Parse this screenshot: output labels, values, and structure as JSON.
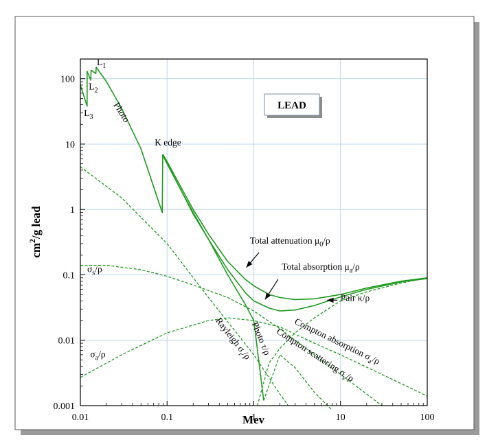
{
  "chart_data": {
    "type": "line",
    "title": "",
    "xlabel": "Mev",
    "ylabel": "cm2/g lead",
    "xscale": "log",
    "yscale": "log",
    "xlim": [
      0.01,
      100
    ],
    "ylim": [
      0.001,
      200
    ],
    "grid": true,
    "x_ticks": [
      "0.01",
      "0.1",
      "1",
      "10",
      "100"
    ],
    "y_ticks": [
      "0.001",
      "0.01",
      "0.1",
      "1",
      "10",
      "100"
    ],
    "box_label": "LEAD",
    "colors": {
      "curve": "#1f9a1f",
      "grid": "#bcd4ec",
      "box_border": "#7a8ca0",
      "frame_shadow": "#9a9a9a"
    },
    "series": [
      {
        "key": "photo",
        "style": "solid",
        "points": [
          [
            0.01,
            80
          ],
          [
            0.01195,
            38
          ],
          [
            0.01196,
            130
          ],
          [
            0.0132,
            95
          ],
          [
            0.0133,
            135
          ],
          [
            0.0151,
            120
          ],
          [
            0.0152,
            150
          ],
          [
            0.02,
            90
          ],
          [
            0.03,
            35
          ],
          [
            0.05,
            8.5
          ],
          [
            0.088,
            0.9
          ],
          [
            0.089,
            6.8
          ],
          [
            0.1,
            5.0
          ],
          [
            0.15,
            1.8
          ],
          [
            0.2,
            0.9
          ],
          [
            0.3,
            0.35
          ],
          [
            0.5,
            0.1
          ],
          [
            0.8,
            0.035
          ],
          [
            1,
            0.02
          ],
          [
            1.3,
            0.0012
          ]
        ]
      },
      {
        "key": "photo_low",
        "style": "dashed",
        "points": [
          [
            1.3,
            0.0012
          ],
          [
            2,
            0.006
          ],
          [
            3,
            0.0038
          ],
          [
            5,
            0.0016
          ],
          [
            8,
            0.00085
          ]
        ]
      },
      {
        "key": "total_attenuation",
        "style": "solid",
        "points": [
          [
            0.089,
            7.0
          ],
          [
            0.1,
            5.4
          ],
          [
            0.15,
            2.0
          ],
          [
            0.2,
            1.0
          ],
          [
            0.3,
            0.42
          ],
          [
            0.5,
            0.16
          ],
          [
            0.8,
            0.085
          ],
          [
            1,
            0.068
          ],
          [
            1.5,
            0.05
          ],
          [
            2,
            0.045
          ],
          [
            3,
            0.042
          ],
          [
            5,
            0.043
          ],
          [
            10,
            0.05
          ],
          [
            20,
            0.063
          ],
          [
            50,
            0.08
          ],
          [
            100,
            0.09
          ]
        ]
      },
      {
        "key": "total_absorption",
        "style": "solid",
        "points": [
          [
            0.089,
            6.8
          ],
          [
            0.1,
            5.0
          ],
          [
            0.15,
            1.8
          ],
          [
            0.2,
            0.85
          ],
          [
            0.3,
            0.35
          ],
          [
            0.5,
            0.12
          ],
          [
            0.8,
            0.053
          ],
          [
            1,
            0.04
          ],
          [
            1.5,
            0.031
          ],
          [
            2,
            0.028
          ],
          [
            3,
            0.029
          ],
          [
            5,
            0.034
          ],
          [
            10,
            0.046
          ],
          [
            20,
            0.06
          ],
          [
            50,
            0.078
          ],
          [
            100,
            0.088
          ]
        ]
      },
      {
        "key": "compton_absorption",
        "style": "dashed",
        "points": [
          [
            0.01,
            0.0027
          ],
          [
            0.03,
            0.006
          ],
          [
            0.1,
            0.013
          ],
          [
            0.3,
            0.02
          ],
          [
            0.5,
            0.022
          ],
          [
            1,
            0.02
          ],
          [
            2,
            0.016
          ],
          [
            5,
            0.009
          ],
          [
            10,
            0.006
          ],
          [
            30,
            0.003
          ],
          [
            100,
            0.0014
          ]
        ]
      },
      {
        "key": "compton_scattering",
        "style": "dashed",
        "points": [
          [
            0.01,
            0.14
          ],
          [
            0.02,
            0.14
          ],
          [
            0.05,
            0.12
          ],
          [
            0.1,
            0.095
          ],
          [
            0.2,
            0.07
          ],
          [
            0.5,
            0.045
          ],
          [
            1,
            0.028
          ],
          [
            2,
            0.015
          ],
          [
            5,
            0.006
          ],
          [
            10,
            0.003
          ],
          [
            20,
            0.0015
          ],
          [
            30,
            0.001
          ]
        ]
      },
      {
        "key": "rayleigh",
        "style": "dashed",
        "points": [
          [
            0.01,
            4.5
          ],
          [
            0.03,
            1.5
          ],
          [
            0.1,
            0.3
          ],
          [
            0.3,
            0.045
          ],
          [
            1,
            0.006
          ],
          [
            2,
            0.0015
          ],
          [
            2.5,
            0.001
          ]
        ]
      },
      {
        "key": "pair",
        "style": "dashed",
        "points": [
          [
            1.1,
            0.001
          ],
          [
            1.5,
            0.0045
          ],
          [
            2,
            0.0075
          ],
          [
            3,
            0.013
          ],
          [
            5,
            0.022
          ],
          [
            10,
            0.04
          ],
          [
            20,
            0.055
          ],
          [
            50,
            0.075
          ],
          [
            100,
            0.09
          ]
        ]
      }
    ],
    "annotations": [
      {
        "key": "l1",
        "text": "L",
        "sub": "1",
        "x": 0.0155,
        "y": 160
      },
      {
        "key": "l2",
        "text": "L",
        "sub": "2",
        "x": 0.0125,
        "y": 68
      },
      {
        "key": "l3",
        "text": "L",
        "sub": "3",
        "x": 0.011,
        "y": 27
      },
      {
        "key": "k-edge",
        "text": "K edge",
        "x": 0.072,
        "y": 9.5
      },
      {
        "key": "total-attenuation",
        "text": "Total attenuation μ",
        "sub": "0",
        "suffix": "/ρ",
        "x": 0.9,
        "y": 0.3
      },
      {
        "key": "total-absorption",
        "text": "Total absorption μ",
        "sub": "a",
        "suffix": "/ρ",
        "x": 2.1,
        "y": 0.12
      },
      {
        "key": "pair",
        "text": "Pair κ/ρ",
        "x": 10,
        "y": 0.04
      },
      {
        "key": "sigma-s",
        "text": "σ",
        "sub": "s",
        "suffix": "/ρ",
        "x": 0.012,
        "y": 0.11
      },
      {
        "key": "sigma-a",
        "text": "σ",
        "sub": "a",
        "suffix": "/ρ",
        "x": 0.013,
        "y": 0.0055
      }
    ],
    "rotated_labels": [
      {
        "key": "photo-upper",
        "text": "Photo",
        "x": 0.024,
        "y": 40,
        "angle": 58
      },
      {
        "key": "photo-lower",
        "text": "Photo τ/ρ",
        "x": 0.95,
        "y": 0.018,
        "angle": 68
      },
      {
        "key": "rayleigh",
        "text": "Rayleigh σ",
        "sub": "r",
        "suffix": "/ρ",
        "x": 0.36,
        "y": 0.02,
        "angle": 52
      },
      {
        "key": "compton-absorption",
        "text": "Compton absorption σ",
        "sub": "a",
        "suffix": "/ρ",
        "x": 2.9,
        "y": 0.018,
        "angle": 26
      },
      {
        "key": "compton-scattering",
        "text": "Compton scattering σ",
        "sub": "s",
        "suffix": "/ρ",
        "x": 1.8,
        "y": 0.013,
        "angle": 33
      }
    ],
    "arrows": [
      {
        "key": "attenuation-arrow",
        "from": [
          1.15,
          0.22
        ],
        "to": [
          0.82,
          0.13
        ]
      },
      {
        "key": "absorption-arrow",
        "from": [
          1.9,
          0.085
        ],
        "to": [
          1.35,
          0.042
        ]
      },
      {
        "key": "pair-arrow",
        "from": [
          9.2,
          0.041
        ],
        "to": [
          7.0,
          0.041
        ]
      }
    ]
  }
}
